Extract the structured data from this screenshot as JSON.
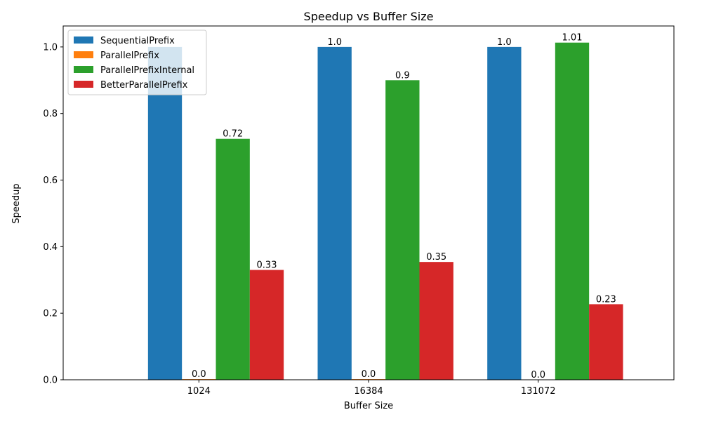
{
  "chart_data": {
    "type": "bar",
    "title": "Speedup vs Buffer Size",
    "xlabel": "Buffer Size",
    "ylabel": "Speedup",
    "categories": [
      "1024",
      "16384",
      "131072"
    ],
    "ylim": [
      0,
      1.063
    ],
    "yticks": [
      "0.0",
      "0.2",
      "0.4",
      "0.6",
      "0.8",
      "1.0"
    ],
    "grid": false,
    "legend_position": "top-left",
    "series": [
      {
        "name": "SequentialPrefix",
        "color": "#1f77b4",
        "values": [
          1.0,
          1.0,
          1.0
        ],
        "labels": [
          "",
          "1.0",
          "1.0"
        ]
      },
      {
        "name": "ParallelPrefix",
        "color": "#ff7f0e",
        "values": [
          0.002,
          0.002,
          0.0005
        ],
        "labels": [
          "0.0",
          "0.0",
          "0.0"
        ]
      },
      {
        "name": "ParallelPrefixInternal",
        "color": "#2ca02c",
        "values": [
          0.724,
          0.9,
          1.013
        ],
        "labels": [
          "0.72",
          "0.9",
          "1.01"
        ]
      },
      {
        "name": "BetterParallelPrefix",
        "color": "#d62728",
        "values": [
          0.33,
          0.354,
          0.227
        ],
        "labels": [
          "0.33",
          "0.35",
          "0.23"
        ]
      }
    ]
  }
}
